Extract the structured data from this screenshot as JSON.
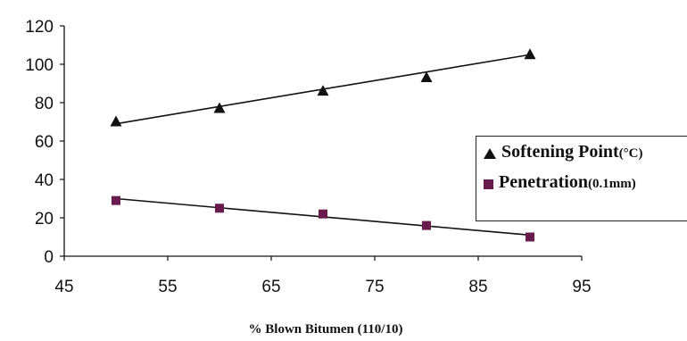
{
  "chart_data": {
    "type": "scatter",
    "xlabel": "% Blown Bitumen (110/10)",
    "ylabel": "",
    "xlim": [
      45,
      95
    ],
    "ylim": [
      0,
      120
    ],
    "xticks": [
      "45",
      "55",
      "65",
      "75",
      "85",
      "95"
    ],
    "yticks": [
      "0",
      "20",
      "40",
      "60",
      "80",
      "100",
      "120"
    ],
    "grid": false,
    "legend_position": "right",
    "series": [
      {
        "name": "Softening Point",
        "unit": "(°C)",
        "marker": "triangle",
        "color": "#111111",
        "x": [
          50,
          60,
          70,
          80,
          90
        ],
        "y": [
          70,
          77,
          86,
          93,
          105
        ],
        "trendline": {
          "type": "linear",
          "from": [
            50,
            69
          ],
          "to": [
            90,
            105
          ]
        }
      },
      {
        "name": "Penetration",
        "unit": "(0.1mm)",
        "marker": "square",
        "color": "#6a1b4d",
        "x": [
          50,
          60,
          70,
          80,
          90
        ],
        "y": [
          29,
          25,
          22,
          16,
          10
        ],
        "trendline": {
          "type": "linear",
          "from": [
            50,
            30
          ],
          "to": [
            90,
            11
          ]
        }
      }
    ]
  }
}
